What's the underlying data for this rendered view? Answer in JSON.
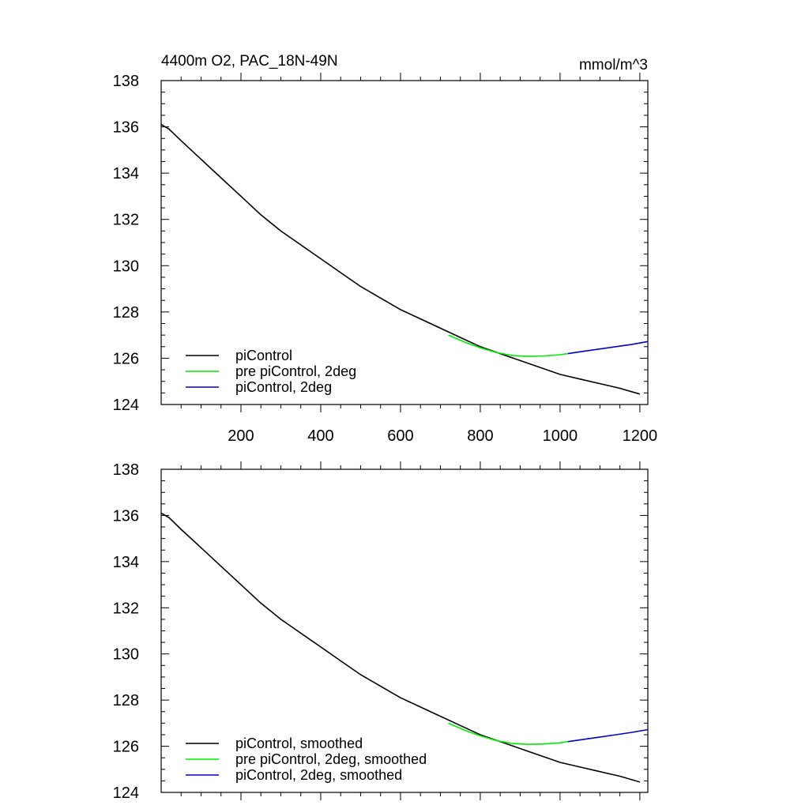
{
  "chart_data": [
    {
      "type": "line",
      "title": "4400m O2, PAC_18N-49N",
      "units": "mmol/m^3",
      "xlabel": "",
      "ylabel": "",
      "xlim": [
        0,
        1220
      ],
      "ylim": [
        124,
        138
      ],
      "x_ticks": [
        200,
        400,
        600,
        800,
        1000,
        1200
      ],
      "y_ticks": [
        124,
        126,
        128,
        130,
        132,
        134,
        136,
        138
      ],
      "x_tick_labels": [
        "200",
        "400",
        "600",
        "800",
        "1000",
        "1200"
      ],
      "y_tick_labels": [
        "124",
        "126",
        "128",
        "130",
        "132",
        "134",
        "136",
        "138"
      ],
      "legend_position": "bottom-left",
      "grid": false,
      "series": [
        {
          "name": "piControl",
          "color": "#000000",
          "x": [
            0,
            20,
            50,
            100,
            150,
            200,
            250,
            300,
            350,
            400,
            450,
            500,
            550,
            600,
            650,
            700,
            750,
            800,
            850,
            900,
            950,
            1000,
            1050,
            1100,
            1150,
            1200
          ],
          "y": [
            136.1,
            135.9,
            135.4,
            134.6,
            133.8,
            133.0,
            132.2,
            131.5,
            130.9,
            130.3,
            129.7,
            129.1,
            128.6,
            128.1,
            127.7,
            127.3,
            126.9,
            126.5,
            126.2,
            125.9,
            125.6,
            125.3,
            125.1,
            124.9,
            124.7,
            124.45
          ]
        },
        {
          "name": "pre piControl, 2deg",
          "color": "#00ee00",
          "x": [
            720,
            760,
            800,
            840,
            880,
            920,
            960,
            1000,
            1020
          ],
          "y": [
            127.0,
            126.7,
            126.45,
            126.25,
            126.12,
            126.08,
            126.1,
            126.15,
            126.2
          ]
        },
        {
          "name": "piControl, 2deg",
          "color": "#0000cc",
          "x": [
            1020,
            1060,
            1100,
            1140,
            1180,
            1220
          ],
          "y": [
            126.2,
            126.3,
            126.4,
            126.5,
            126.6,
            126.72
          ]
        }
      ]
    },
    {
      "type": "line",
      "title": "",
      "xlabel": "",
      "ylabel": "",
      "xlim": [
        0,
        1220
      ],
      "ylim": [
        124,
        138
      ],
      "x_ticks": [
        200,
        400,
        600,
        800,
        1000,
        1200
      ],
      "y_ticks": [
        124,
        126,
        128,
        130,
        132,
        134,
        136,
        138
      ],
      "y_tick_labels": [
        "124",
        "126",
        "128",
        "130",
        "132",
        "134",
        "136",
        "138"
      ],
      "legend_position": "bottom-left",
      "grid": false,
      "series": [
        {
          "name": "piControl, smoothed",
          "color": "#000000",
          "x": [
            0,
            20,
            50,
            100,
            150,
            200,
            250,
            300,
            350,
            400,
            450,
            500,
            550,
            600,
            650,
            700,
            750,
            800,
            850,
            900,
            950,
            1000,
            1050,
            1100,
            1150,
            1200
          ],
          "y": [
            136.1,
            135.9,
            135.4,
            134.6,
            133.8,
            133.0,
            132.2,
            131.5,
            130.9,
            130.3,
            129.7,
            129.1,
            128.6,
            128.1,
            127.7,
            127.3,
            126.9,
            126.5,
            126.2,
            125.9,
            125.6,
            125.3,
            125.1,
            124.9,
            124.7,
            124.45
          ]
        },
        {
          "name": "pre piControl, 2deg, smoothed",
          "color": "#00ee00",
          "x": [
            720,
            760,
            800,
            840,
            880,
            920,
            960,
            1000,
            1020
          ],
          "y": [
            127.0,
            126.7,
            126.45,
            126.25,
            126.12,
            126.08,
            126.1,
            126.15,
            126.2
          ]
        },
        {
          "name": "piControl, 2deg, smoothed",
          "color": "#0000cc",
          "x": [
            1020,
            1060,
            1100,
            1140,
            1180,
            1220
          ],
          "y": [
            126.2,
            126.3,
            126.4,
            126.5,
            126.6,
            126.72
          ]
        }
      ]
    }
  ]
}
